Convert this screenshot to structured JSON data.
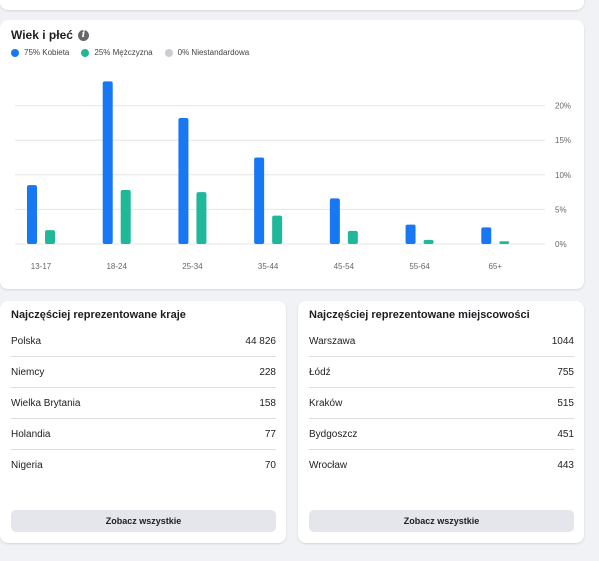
{
  "age_gender": {
    "title": "Wiek i płeć",
    "legend": [
      {
        "label": "75% Kobieta",
        "color": "#1877f2"
      },
      {
        "label": "25% Mężczyzna",
        "color": "#1fb89a"
      },
      {
        "label": "0% Niestandardowa",
        "color": "#c9ccd1"
      }
    ]
  },
  "chart_data": {
    "type": "bar",
    "categories": [
      "13-17",
      "18-24",
      "25-34",
      "35-44",
      "45-54",
      "55-64",
      "65+"
    ],
    "series": [
      {
        "name": "75% Kobieta",
        "color": "#1877f2",
        "values": [
          8.5,
          23.5,
          18.2,
          12.5,
          6.6,
          2.8,
          2.4
        ]
      },
      {
        "name": "25% Mężczyzna",
        "color": "#1fb89a",
        "values": [
          2.0,
          7.8,
          7.5,
          4.1,
          1.9,
          0.6,
          0.4
        ]
      },
      {
        "name": "0% Niestandardowa",
        "color": "#c9ccd1",
        "values": [
          0,
          0,
          0,
          0,
          0,
          0,
          0
        ]
      }
    ],
    "y_ticks": [
      "0%",
      "5%",
      "10%",
      "15%",
      "20%"
    ],
    "ylim": [
      0,
      25
    ],
    "grid": true
  },
  "countries": {
    "title": "Najczęściej reprezentowane kraje",
    "rows": [
      {
        "name": "Polska",
        "value": "44 826"
      },
      {
        "name": "Niemcy",
        "value": "228"
      },
      {
        "name": "Wielka Brytania",
        "value": "158"
      },
      {
        "name": "Holandia",
        "value": "77"
      },
      {
        "name": "Nigeria",
        "value": "70"
      }
    ],
    "button": "Zobacz wszystkie"
  },
  "cities": {
    "title": "Najczęściej reprezentowane miejscowości",
    "rows": [
      {
        "name": "Warszawa",
        "value": "1044"
      },
      {
        "name": "Łódź",
        "value": "755"
      },
      {
        "name": "Kraków",
        "value": "515"
      },
      {
        "name": "Bydgoszcz",
        "value": "451"
      },
      {
        "name": "Wrocław",
        "value": "443"
      }
    ],
    "button": "Zobacz wszystkie"
  }
}
